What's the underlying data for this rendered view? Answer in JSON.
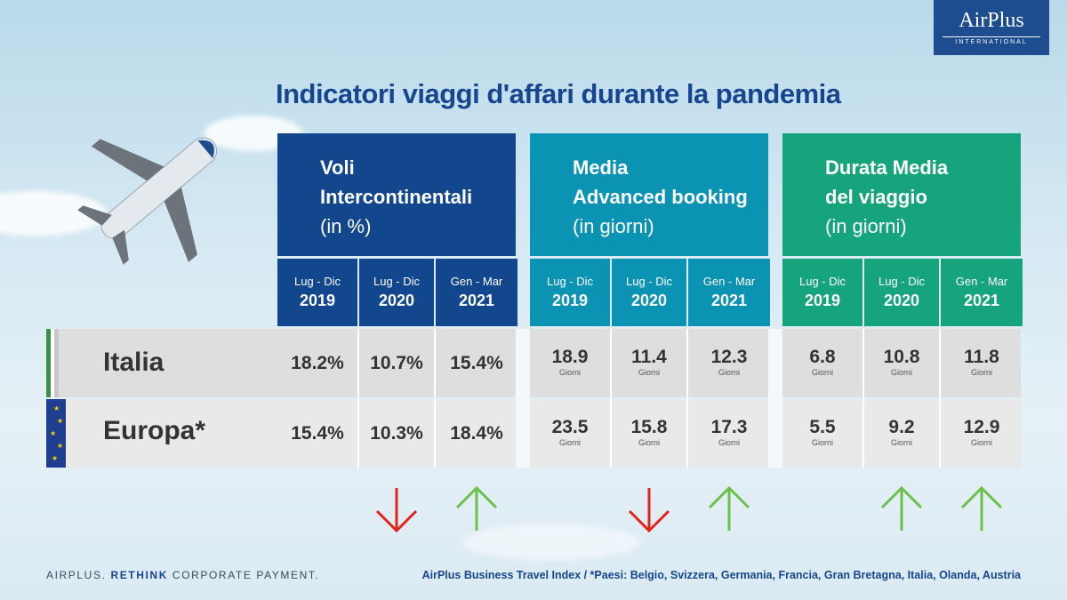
{
  "header": {
    "title": "Indicatori viaggi d'affari durante la pandemia",
    "logo": {
      "brand": "AirPlus",
      "sub": "INTERNATIONAL"
    }
  },
  "chart_data": {
    "type": "table",
    "periods": [
      {
        "range": "Lug - Dic",
        "year": "2019"
      },
      {
        "range": "Lug - Dic",
        "year": "2020"
      },
      {
        "range": "Gen - Mar",
        "year": "2021"
      }
    ],
    "panels": [
      {
        "line1": "Voli",
        "line2": "Intercontinentali",
        "unit": "(in %)",
        "color": "#12478e",
        "unit_label": "",
        "rows": [
          [
            "18.2%",
            "10.7%",
            "15.4%"
          ],
          [
            "15.4%",
            "10.3%",
            "18.4%"
          ]
        ],
        "trend": [
          "",
          "down",
          "up"
        ]
      },
      {
        "line1": "Media",
        "line2": "Advanced booking",
        "unit": "(in giorni)",
        "color": "#0a93b3",
        "unit_label": "Giorni",
        "rows": [
          [
            "18.9",
            "11.4",
            "12.3"
          ],
          [
            "23.5",
            "15.8",
            "17.3"
          ]
        ],
        "trend": [
          "",
          "down",
          "up"
        ]
      },
      {
        "line1": "Durata Media",
        "line2": "del viaggio",
        "unit": "(in giorni)",
        "color": "#16a47c",
        "unit_label": "Giorni",
        "rows": [
          [
            "6.8",
            "10.8",
            "11.8"
          ],
          [
            "5.5",
            "9.2",
            "12.9"
          ]
        ],
        "trend": [
          "",
          "up",
          "up"
        ]
      }
    ],
    "row_labels": [
      "Italia",
      "Europa*"
    ],
    "arrow_colors": {
      "up": "#6cbf49",
      "down": "#e2231a"
    }
  },
  "footer": {
    "left_prefix": "AIRPLUS.",
    "left_bold": "RETHINK",
    "left_suffix": "CORPORATE PAYMENT.",
    "right": "AirPlus Business Travel Index / *Paesi: Belgio, Svizzera, Germania, Francia, Gran Bretagna, Italia, Olanda, Austria"
  }
}
